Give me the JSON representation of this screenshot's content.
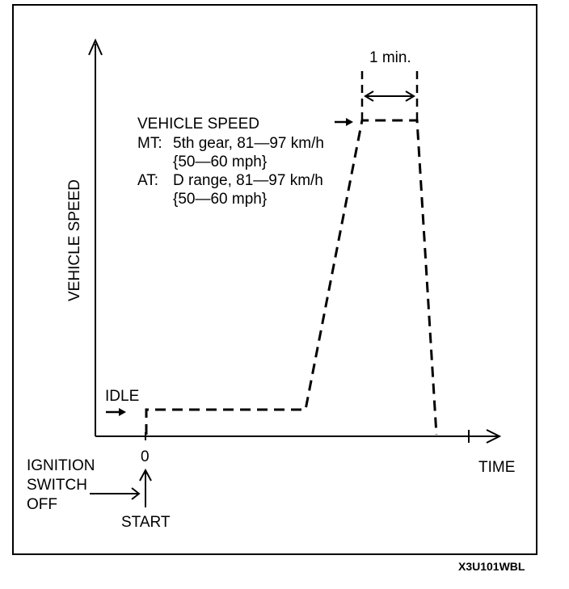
{
  "diagram": {
    "y_axis_label": "VEHICLE SPEED",
    "x_axis_label": "TIME",
    "origin_label": "0",
    "idle_label": "IDLE",
    "ignition_label": [
      "IGNITION",
      "SWITCH",
      "OFF"
    ],
    "start_label": "START",
    "duration_label": "1 min.",
    "speed_spec": {
      "title": "VEHICLE SPEED",
      "mt_prefix": "MT:",
      "mt_line1": "5th gear, 81—97 km/h",
      "mt_line2": "{50—60 mph}",
      "at_prefix": "AT:",
      "at_line1": "D range, 81—97 km/h",
      "at_line2": "{50—60 mph}"
    },
    "figure_code": "X3U101WBL",
    "colors": {
      "ink": "#000000",
      "background": "#ffffff"
    }
  }
}
